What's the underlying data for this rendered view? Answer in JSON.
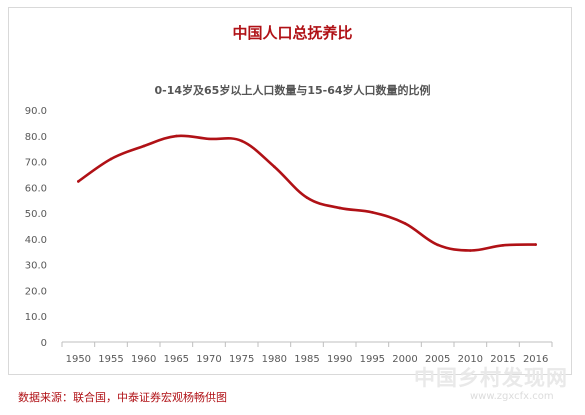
{
  "watermark": {
    "text": "中国乡村发现网",
    "url": "www.zgxcfx.com"
  },
  "source": "数据来源：联合国，中泰证券宏观杨畅供图",
  "colors": {
    "line": "#b01116",
    "title": "#b01116",
    "subtitle": "#555555",
    "axis": "#bfbfbf",
    "tick": "#595959"
  },
  "chart_data": {
    "type": "line",
    "title": "中国人口总抚养比",
    "subtitle": "0-14岁及65岁以上人口数量与15-64岁人口数量的比例",
    "xlabel": "",
    "ylabel": "",
    "categories": [
      "1950",
      "1955",
      "1960",
      "1965",
      "1970",
      "1975",
      "1980",
      "1985",
      "1990",
      "1995",
      "2000",
      "2005",
      "2010",
      "2015",
      "2016"
    ],
    "values": [
      62.3,
      71.0,
      76.0,
      79.9,
      78.8,
      78.0,
      68.0,
      56.0,
      52.0,
      50.3,
      46.0,
      37.7,
      35.5,
      37.5,
      37.8
    ],
    "yticks": [
      "0",
      "10.0",
      "20.0",
      "30.0",
      "40.0",
      "50.0",
      "60.0",
      "70.0",
      "80.0",
      "90.0"
    ],
    "ylim": [
      0,
      90
    ],
    "grid": false,
    "legend": "none"
  }
}
